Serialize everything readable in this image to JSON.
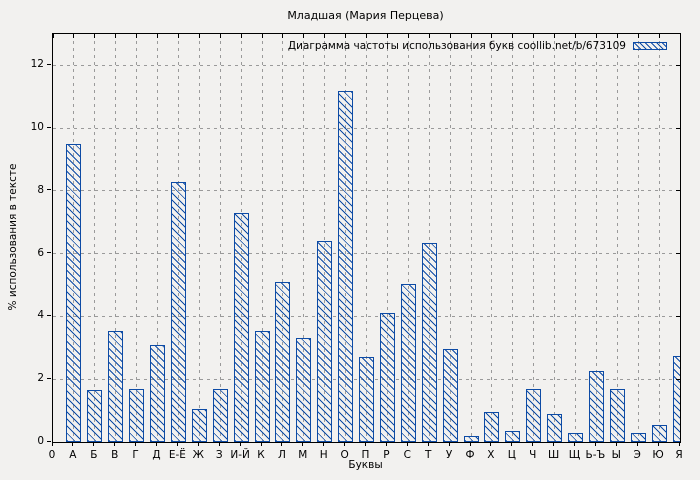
{
  "window": {
    "background_color": "#f2f1ef"
  },
  "chart_data": {
    "type": "bar",
    "title": "Младшая (Мария Перцева)",
    "legend_label": "Диаграмма частоты использования букв coollib.net/b/673109",
    "legend_position": "top-right-inside",
    "xlabel": "Буквы",
    "ylabel": "% использования в тексте",
    "origin_tick_label": "0",
    "categories": [
      "А",
      "Б",
      "В",
      "Г",
      "Д",
      "Е-Ё",
      "Ж",
      "З",
      "И-Й",
      "К",
      "Л",
      "М",
      "Н",
      "О",
      "П",
      "Р",
      "С",
      "Т",
      "У",
      "Ф",
      "Х",
      "Ц",
      "Ч",
      "Ш",
      "Щ",
      "Ь-Ъ",
      "Ы",
      "Э",
      "Ю",
      "Я"
    ],
    "values": [
      9.5,
      1.65,
      3.55,
      1.7,
      3.1,
      8.3,
      1.05,
      1.7,
      7.3,
      3.55,
      5.1,
      3.3,
      6.4,
      11.2,
      2.7,
      4.1,
      5.05,
      6.35,
      2.95,
      0.2,
      0.95,
      0.35,
      1.7,
      0.9,
      0.3,
      2.25,
      1.7,
      0.3,
      0.55,
      2.75
    ],
    "yticks": [
      0,
      2,
      4,
      6,
      8,
      10,
      12
    ],
    "ylim": [
      0,
      13
    ],
    "grid": true,
    "hatch": "diagonal-backslash",
    "bar_color": "#0d4ba5",
    "gridline_color": "#9a9a9a",
    "frame_color": "#000000"
  }
}
